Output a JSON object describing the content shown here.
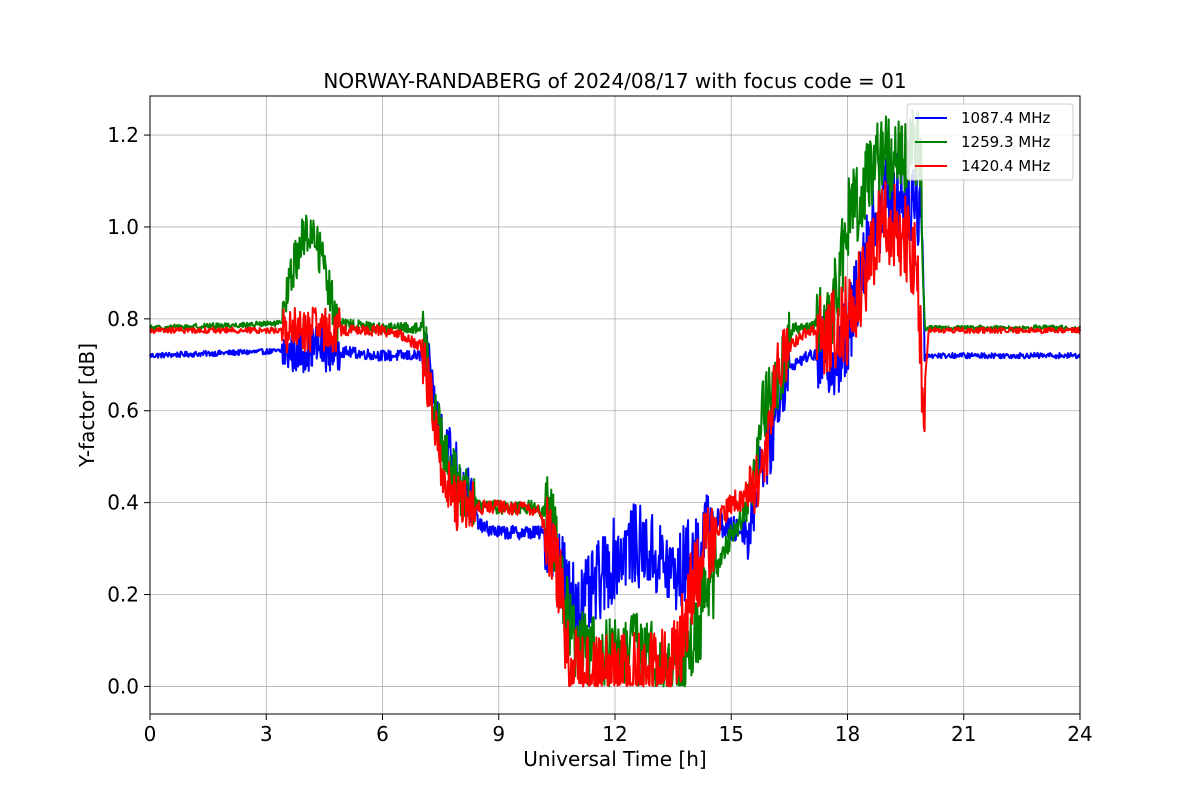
{
  "chart_data": {
    "type": "line",
    "title": "NORWAY-RANDABERG of 2024/08/17 with focus code = 01",
    "xlabel": "Universal Time [h]",
    "ylabel": "Y-factor [dB]",
    "xlim": [
      0,
      24
    ],
    "ylim": [
      -0.06,
      1.285
    ],
    "xticks": [
      0,
      3,
      6,
      9,
      12,
      15,
      18,
      21,
      24
    ],
    "yticks": [
      0.0,
      0.2,
      0.4,
      0.6,
      0.8,
      1.0,
      1.2
    ],
    "xtick_labels": [
      "0",
      "3",
      "6",
      "9",
      "12",
      "15",
      "18",
      "21",
      "24"
    ],
    "ytick_labels": [
      "0.0",
      "0.2",
      "0.4",
      "0.6",
      "0.8",
      "1.0",
      "1.2"
    ],
    "grid": true,
    "legend_position": "top-right",
    "series": [
      {
        "name": "1087.4 MHz",
        "color": "#0000ff",
        "x": [
          0,
          3.4,
          3.8,
          4.3,
          4.8,
          6.0,
          7.0,
          7.2,
          7.4,
          7.7,
          8.0,
          8.3,
          8.5,
          9.0,
          10.0,
          10.4,
          10.6,
          10.8,
          11.2,
          11.6,
          12.0,
          12.4,
          12.8,
          13.2,
          13.6,
          13.9,
          14.2,
          14.6,
          15.0,
          15.5,
          15.7,
          16.0,
          16.3,
          16.6,
          17.0,
          17.5,
          18.0,
          18.3,
          18.6,
          19.0,
          19.5,
          19.9,
          20.0,
          21.0,
          24.0
        ],
        "values": [
          0.72,
          0.73,
          0.73,
          0.74,
          0.73,
          0.72,
          0.72,
          0.7,
          0.58,
          0.52,
          0.46,
          0.4,
          0.35,
          0.335,
          0.335,
          0.33,
          0.27,
          0.2,
          0.18,
          0.23,
          0.28,
          0.31,
          0.3,
          0.27,
          0.24,
          0.28,
          0.31,
          0.36,
          0.34,
          0.34,
          0.48,
          0.52,
          0.66,
          0.7,
          0.72,
          0.72,
          0.74,
          0.9,
          1.0,
          1.07,
          1.07,
          1.05,
          0.72,
          0.72,
          0.72
        ]
      },
      {
        "name": "1259.3 MHz",
        "color": "#008000",
        "x": [
          0,
          3.4,
          3.6,
          3.9,
          4.2,
          4.5,
          4.8,
          6.0,
          7.1,
          7.3,
          7.6,
          8.0,
          8.3,
          8.8,
          10.0,
          10.4,
          10.7,
          11.0,
          11.5,
          12.0,
          12.5,
          13.0,
          13.5,
          13.9,
          14.1,
          14.4,
          14.8,
          15.2,
          15.5,
          15.8,
          16.2,
          16.6,
          17.0,
          17.5,
          17.8,
          18.0,
          18.4,
          18.8,
          19.2,
          19.6,
          19.9,
          20.0,
          21.0,
          24.0
        ],
        "values": [
          0.78,
          0.79,
          0.88,
          0.97,
          0.99,
          0.92,
          0.79,
          0.78,
          0.78,
          0.62,
          0.5,
          0.43,
          0.4,
          0.39,
          0.39,
          0.36,
          0.17,
          0.08,
          0.06,
          0.06,
          0.08,
          0.07,
          0.03,
          0.04,
          0.12,
          0.2,
          0.3,
          0.36,
          0.4,
          0.6,
          0.66,
          0.78,
          0.78,
          0.8,
          0.88,
          1.0,
          1.1,
          1.15,
          1.16,
          1.16,
          1.15,
          0.78,
          0.78,
          0.78
        ]
      },
      {
        "name": "1420.4 MHz",
        "color": "#ff0000",
        "x": [
          0,
          3.0,
          6.0,
          6.3,
          7.0,
          7.3,
          7.6,
          7.9,
          8.2,
          9.0,
          10.0,
          10.3,
          10.6,
          10.8,
          11.2,
          11.6,
          12.0,
          12.5,
          13.0,
          13.4,
          13.7,
          14.0,
          14.4,
          14.8,
          15.0,
          15.6,
          15.9,
          16.2,
          16.5,
          17.0,
          17.5,
          18.0,
          18.3,
          18.6,
          19.0,
          19.4,
          19.8,
          19.95,
          20.1,
          21.0,
          24.0
        ],
        "values": [
          0.775,
          0.775,
          0.775,
          0.77,
          0.74,
          0.6,
          0.45,
          0.4,
          0.39,
          0.39,
          0.385,
          0.33,
          0.22,
          0.04,
          0.03,
          0.03,
          0.03,
          0.03,
          0.04,
          0.03,
          0.1,
          0.22,
          0.32,
          0.37,
          0.39,
          0.44,
          0.5,
          0.7,
          0.74,
          0.775,
          0.78,
          0.8,
          0.85,
          0.95,
          1.02,
          0.98,
          0.94,
          0.61,
          0.775,
          0.775,
          0.775
        ]
      }
    ]
  }
}
